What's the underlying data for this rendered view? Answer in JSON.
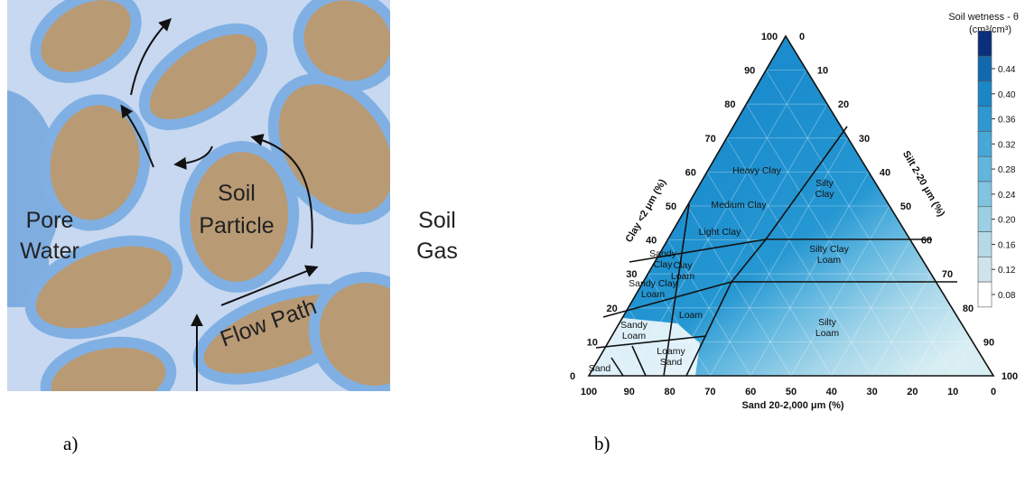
{
  "panel_a": {
    "pore_water": [
      "Pore",
      "Water"
    ],
    "soil_particle": [
      "Soil",
      "Particle"
    ],
    "soil_gas": [
      "Soil",
      "Gas"
    ],
    "flow_path": "Flow Path",
    "caption": "a)"
  },
  "panel_b": {
    "clay_axis_title": "Clay <2 μm (%)",
    "silt_axis_title": "Silt 2-20 μm (%)",
    "sand_axis_title": "Sand 20-2,000 μm (%)",
    "clay_ticks": [
      0,
      10,
      20,
      30,
      40,
      50,
      60,
      70,
      80,
      90,
      100
    ],
    "silt_ticks": [
      0,
      10,
      20,
      30,
      40,
      50,
      60,
      70,
      80,
      90,
      100
    ],
    "sand_ticks": [
      100,
      90,
      80,
      70,
      60,
      50,
      40,
      30,
      20,
      10,
      0
    ],
    "classes": [
      [
        "Heavy Clay"
      ],
      [
        "Medium Clay"
      ],
      [
        "Light Clay"
      ],
      [
        "Silty",
        "Clay"
      ],
      [
        "Silty Clay",
        "Loam"
      ],
      [
        "Sandy",
        "Clay"
      ],
      [
        "Clay",
        "Loam"
      ],
      [
        "Sandy Clay",
        "Loam"
      ],
      [
        "Loam"
      ],
      [
        "Silty",
        "Loam"
      ],
      [
        "Sandy",
        "Loam"
      ],
      [
        "Loamy",
        "Sand"
      ],
      [
        "Sand"
      ]
    ],
    "colorbar": {
      "title": "Soil wetness - θ",
      "unit": "(cm³/cm³)",
      "ticks": [
        {
          "value": 0.44,
          "label": "0.44"
        },
        {
          "value": 0.4,
          "label": "0.40"
        },
        {
          "value": 0.36,
          "label": "0.36"
        },
        {
          "value": 0.32,
          "label": "0.32"
        },
        {
          "value": 0.28,
          "label": "0.28"
        },
        {
          "value": 0.24,
          "label": "0.24"
        },
        {
          "value": 0.2,
          "label": "0.20"
        },
        {
          "value": 0.16,
          "label": "0.16"
        },
        {
          "value": 0.12,
          "label": "0.12"
        },
        {
          "value": 0.08,
          "label": "0.08"
        }
      ]
    },
    "caption": "b)"
  }
}
